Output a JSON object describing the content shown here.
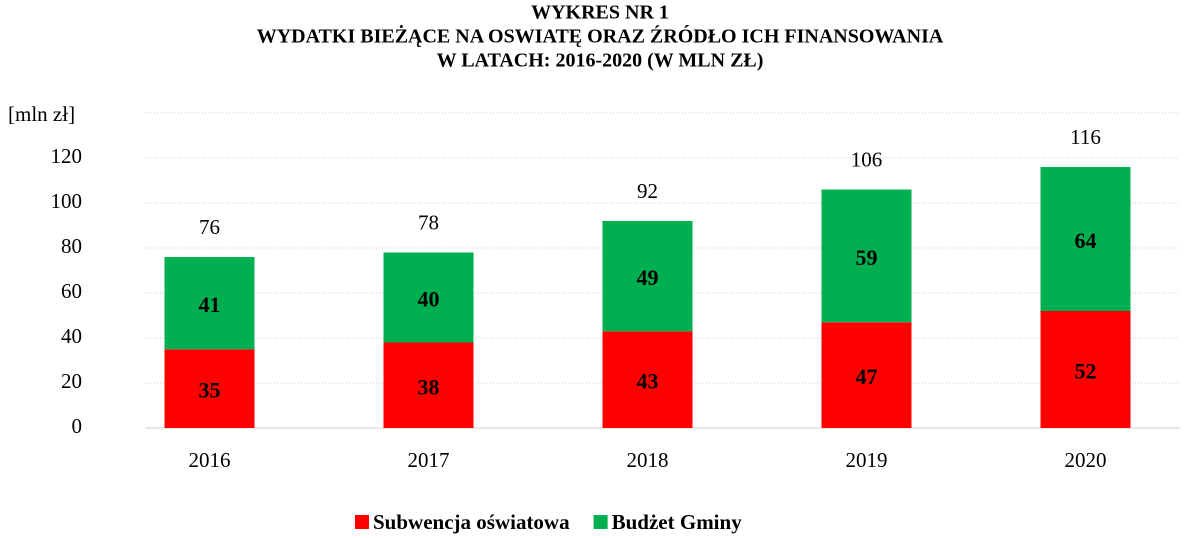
{
  "chart_data": {
    "type": "stacked_bar",
    "title": [
      "WYKRES NR 1",
      "WYDATKI BIEŻĄCE NA OSWIATĘ ORAZ ŹRÓDŁO ICH FINANSOWANIA",
      "W LATACH:  2016-2020  (W MLN ZŁ)"
    ],
    "y_label": "[mln zł]",
    "categories": [
      "2016",
      "2017",
      "2018",
      "2019",
      "2020"
    ],
    "series": [
      {
        "name": "Subwencja oświatowa",
        "color": "#ff0000",
        "values": [
          35,
          38,
          43,
          47,
          52
        ]
      },
      {
        "name": "Budżet Gminy",
        "color": "#00b050",
        "values": [
          41,
          40,
          49,
          59,
          64
        ]
      }
    ],
    "totals": [
      76,
      78,
      92,
      106,
      116
    ],
    "ylim": [
      0,
      140
    ],
    "yticks": [
      0,
      20,
      40,
      60,
      80,
      100,
      120
    ],
    "grid": true,
    "legend": "bottom"
  }
}
